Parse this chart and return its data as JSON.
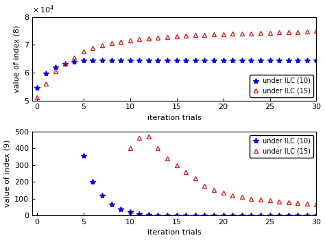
{
  "top": {
    "ylabel": "value of index (8)",
    "xlabel": "iteration trials",
    "ylim": [
      5,
      8
    ],
    "yticks": [
      5,
      6,
      7,
      8
    ],
    "xlim": [
      -0.5,
      30
    ],
    "xticks": [
      0,
      5,
      10,
      15,
      20,
      25,
      30
    ],
    "ilc10_x": [
      0,
      1,
      2,
      3,
      4,
      5,
      6,
      7,
      8,
      9,
      10,
      11,
      12,
      13,
      14,
      15,
      16,
      17,
      18,
      19,
      20,
      21,
      22,
      23,
      24,
      25,
      26,
      27,
      28,
      29,
      30
    ],
    "ilc10_y": [
      5.45,
      5.98,
      6.2,
      6.32,
      6.4,
      6.43,
      6.44,
      6.45,
      6.45,
      6.45,
      6.45,
      6.45,
      6.45,
      6.45,
      6.45,
      6.45,
      6.45,
      6.45,
      6.45,
      6.45,
      6.45,
      6.45,
      6.45,
      6.45,
      6.45,
      6.45,
      6.45,
      6.45,
      6.45,
      6.45,
      6.45
    ],
    "ilc15_x": [
      0,
      1,
      2,
      3,
      4,
      5,
      6,
      7,
      8,
      9,
      10,
      11,
      12,
      13,
      14,
      15,
      16,
      17,
      18,
      19,
      20,
      21,
      22,
      23,
      24,
      25,
      26,
      27,
      28,
      29,
      30
    ],
    "ilc15_y": [
      5.1,
      5.6,
      6.05,
      6.32,
      6.55,
      6.75,
      6.88,
      6.98,
      7.05,
      7.1,
      7.15,
      7.2,
      7.23,
      7.26,
      7.28,
      7.3,
      7.32,
      7.34,
      7.35,
      7.37,
      7.38,
      7.39,
      7.4,
      7.41,
      7.42,
      7.43,
      7.44,
      7.45,
      7.46,
      7.48,
      7.5
    ],
    "legend_loc": "lower right"
  },
  "bottom": {
    "ylabel": "value of index (9)",
    "xlabel": "iteration trials",
    "ylim": [
      0,
      500
    ],
    "yticks": [
      0,
      100,
      200,
      300,
      400,
      500
    ],
    "xlim": [
      -0.5,
      30
    ],
    "xticks": [
      0,
      5,
      10,
      15,
      20,
      25,
      30
    ],
    "ilc10_x": [
      5,
      6,
      7,
      8,
      9,
      10,
      11,
      12,
      13,
      14,
      15,
      16,
      17,
      18,
      19,
      20,
      21,
      22,
      23,
      24,
      25,
      26,
      27,
      28,
      29,
      30
    ],
    "ilc10_y": [
      355,
      200,
      118,
      65,
      38,
      20,
      10,
      5,
      2,
      1,
      0.5,
      0.3,
      0.2,
      0.1,
      0.05,
      0.02,
      0.01,
      0.005,
      0.003,
      0.002,
      0.001,
      0.001,
      0.001,
      0,
      0,
      0
    ],
    "ilc15_x": [
      10,
      11,
      12,
      13,
      14,
      15,
      16,
      17,
      18,
      19,
      20,
      21,
      22,
      23,
      24,
      25,
      26,
      27,
      28,
      29,
      30
    ],
    "ilc15_y": [
      400,
      465,
      470,
      400,
      340,
      300,
      260,
      220,
      175,
      150,
      135,
      120,
      110,
      100,
      95,
      90,
      83,
      78,
      74,
      70,
      67
    ],
    "legend_loc": "upper right"
  },
  "blue_color": "#0000EE",
  "red_color": "#CC2222",
  "legend_ilc10": "under ILC (10)",
  "legend_ilc15": "under ILC (15)"
}
